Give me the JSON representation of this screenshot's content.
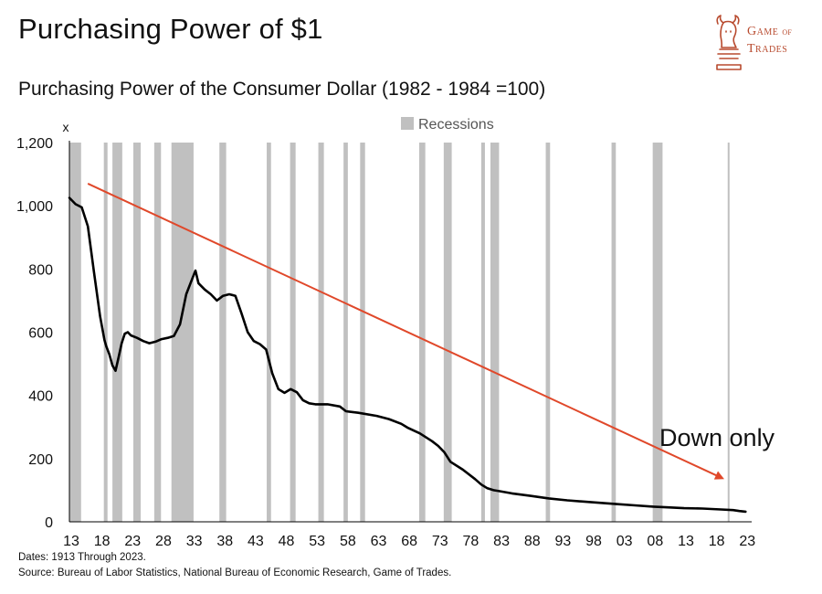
{
  "header": {
    "title": "Purchasing Power of $1",
    "subtitle": "Purchasing Power of the Consumer Dollar (1982 - 1984 =100)"
  },
  "logo": {
    "line1_big": "Game",
    "line1_small": "of",
    "line2": "Trades",
    "icon": "bull-knight-chess-icon",
    "color": "#b84a2e"
  },
  "footer": {
    "dates": "Dates: 1913 Through 2023.",
    "source": "Source: Bureau of Labor Statistics, National Bureau of Economic Research, Game of Trades."
  },
  "chart_data": {
    "type": "line",
    "title": "Purchasing Power of $1",
    "subtitle": "Purchasing Power of the Consumer Dollar (1982 - 1984 =100)",
    "y_unit_label": "x",
    "xlim": [
      1913,
      2024
    ],
    "ylim": [
      0,
      1200
    ],
    "y_ticks": [
      0,
      200,
      400,
      600,
      800,
      1000,
      1200
    ],
    "y_tick_labels": [
      "0",
      "200",
      "400",
      "600",
      "800",
      "1,000",
      "1,200"
    ],
    "x_ticks": [
      1913,
      1918,
      1923,
      1928,
      1933,
      1938,
      1943,
      1948,
      1953,
      1958,
      1963,
      1968,
      1973,
      1978,
      1983,
      1988,
      1993,
      1998,
      2003,
      2008,
      2013,
      2018,
      2023
    ],
    "x_tick_labels": [
      "13",
      "18",
      "23",
      "28",
      "33",
      "38",
      "43",
      "48",
      "53",
      "58",
      "63",
      "68",
      "73",
      "78",
      "83",
      "88",
      "93",
      "98",
      "03",
      "08",
      "13",
      "18",
      "23"
    ],
    "grid": false,
    "legend": {
      "position": "top-center",
      "entries": [
        {
          "label": "Recessions",
          "color": "#c0c0c0"
        }
      ]
    },
    "line_color": "#000000",
    "series": [
      {
        "x": [
          1913,
          1914,
          1915,
          1916,
          1917,
          1918,
          1918.7,
          1919,
          1919.5,
          1920,
          1920.5,
          1921,
          1921.5,
          1922,
          1922.5,
          1923,
          1924,
          1925,
          1926,
          1927,
          1928,
          1929,
          1930,
          1931,
          1932,
          1933,
          1933.5,
          1934,
          1935,
          1936,
          1937,
          1938,
          1939,
          1940,
          1941,
          1942,
          1943,
          1944,
          1945,
          1946,
          1947,
          1948,
          1949,
          1950,
          1951,
          1952,
          1953,
          1955,
          1957,
          1958,
          1960,
          1963,
          1965,
          1967,
          1968,
          1970,
          1972,
          1973,
          1974,
          1975,
          1977,
          1979,
          1980,
          1981,
          1982,
          1983,
          1985,
          1988,
          1991,
          1994,
          1998,
          2002,
          2005,
          2008,
          2010,
          2013,
          2016,
          2019,
          2021,
          2022,
          2023
        ],
        "y": [
          1025,
          1005,
          995,
          935,
          790,
          650,
          575,
          555,
          530,
          495,
          478,
          520,
          565,
          595,
          600,
          590,
          582,
          572,
          565,
          570,
          578,
          582,
          588,
          625,
          720,
          770,
          795,
          755,
          735,
          720,
          700,
          715,
          720,
          715,
          660,
          600,
          572,
          562,
          545,
          470,
          420,
          408,
          420,
          410,
          385,
          375,
          372,
          372,
          365,
          350,
          345,
          335,
          325,
          310,
          298,
          280,
          255,
          240,
          220,
          190,
          165,
          135,
          118,
          106,
          100,
          97,
          90,
          82,
          74,
          68,
          62,
          56,
          52,
          48,
          46,
          43,
          42,
          39,
          37,
          34,
          32
        ]
      }
    ],
    "recessions": [
      [
        1913.0,
        1914.9
      ],
      [
        1918.6,
        1919.2
      ],
      [
        1920.0,
        1921.6
      ],
      [
        1923.4,
        1924.6
      ],
      [
        1926.8,
        1927.9
      ],
      [
        1929.6,
        1933.2
      ],
      [
        1937.4,
        1938.5
      ],
      [
        1945.1,
        1945.8
      ],
      [
        1948.9,
        1949.8
      ],
      [
        1953.5,
        1954.4
      ],
      [
        1957.6,
        1958.3
      ],
      [
        1960.3,
        1961.1
      ],
      [
        1969.9,
        1970.9
      ],
      [
        1973.9,
        1975.2
      ],
      [
        1980.0,
        1980.6
      ],
      [
        1981.5,
        1982.9
      ],
      [
        1990.5,
        1991.2
      ],
      [
        2001.2,
        2001.9
      ],
      [
        2007.9,
        2009.5
      ],
      [
        2020.1,
        2020.4
      ]
    ],
    "annotations": [
      {
        "text": "Down only",
        "arrow_from": {
          "x": 1916,
          "y": 1070
        },
        "arrow_to": {
          "x": 2019,
          "y": 140
        },
        "color": "#e0482a"
      }
    ]
  }
}
